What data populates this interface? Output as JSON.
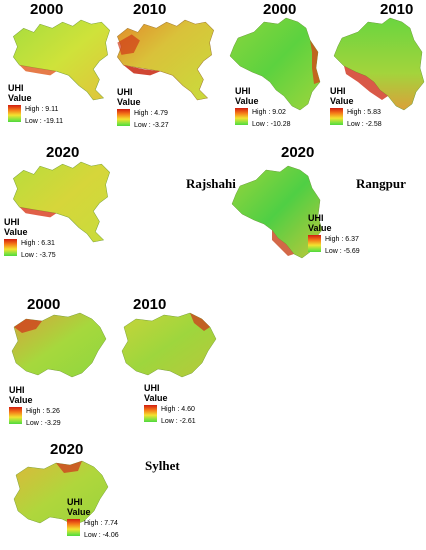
{
  "panels": [
    {
      "id": "rajshahi-2000",
      "year": "2000",
      "legend": {
        "title": "UHI",
        "subtitle": "Value",
        "high": "High : 9.11",
        "low": "Low : -19.11"
      }
    },
    {
      "id": "rajshahi-2010",
      "year": "2010",
      "legend": {
        "title": "UHI",
        "subtitle": "Value",
        "high": "High : 4.79",
        "low": "Low : -3.27"
      }
    },
    {
      "id": "rangpur-2000",
      "year": "2000",
      "legend": {
        "title": "UHI",
        "subtitle": "Value",
        "high": "High : 9.02",
        "low": "Low : -10.28"
      }
    },
    {
      "id": "rangpur-2010",
      "year": "2010",
      "legend": {
        "title": "UHI",
        "subtitle": "Value",
        "high": "High : 5.83",
        "low": "Low : -2.58"
      }
    },
    {
      "id": "rajshahi-2020",
      "year": "2020",
      "legend": {
        "title": "UHI",
        "subtitle": "Value",
        "high": "High : 6.31",
        "low": "Low : -3.75"
      }
    },
    {
      "id": "rangpur-2020",
      "year": "2020",
      "legend": {
        "title": "UHI",
        "subtitle": "Value",
        "high": "High : 6.37",
        "low": "Low : -5.69"
      }
    },
    {
      "id": "sylhet-2000",
      "year": "2000",
      "legend": {
        "title": "UHI",
        "subtitle": "Value",
        "high": "High : 5.26",
        "low": "Low : -3.29"
      }
    },
    {
      "id": "sylhet-2010",
      "year": "2010",
      "legend": {
        "title": "UHI",
        "subtitle": "Value",
        "high": "High : 4.60",
        "low": "Low : -2.61"
      }
    },
    {
      "id": "sylhet-2020",
      "year": "2020",
      "legend": {
        "title": "UHI",
        "subtitle": "Value",
        "high": "High : 7.74",
        "low": "Low : -4.06"
      }
    }
  ],
  "region_labels": {
    "rajshahi": "Rajshahi",
    "rangpur": "Rangpur",
    "sylhet": "Sylhet"
  },
  "colors": {
    "high": "#d21c10",
    "mid_high": "#f57a18",
    "mid": "#f4e230",
    "mid_low": "#86e23e",
    "low": "#4ed83d"
  }
}
